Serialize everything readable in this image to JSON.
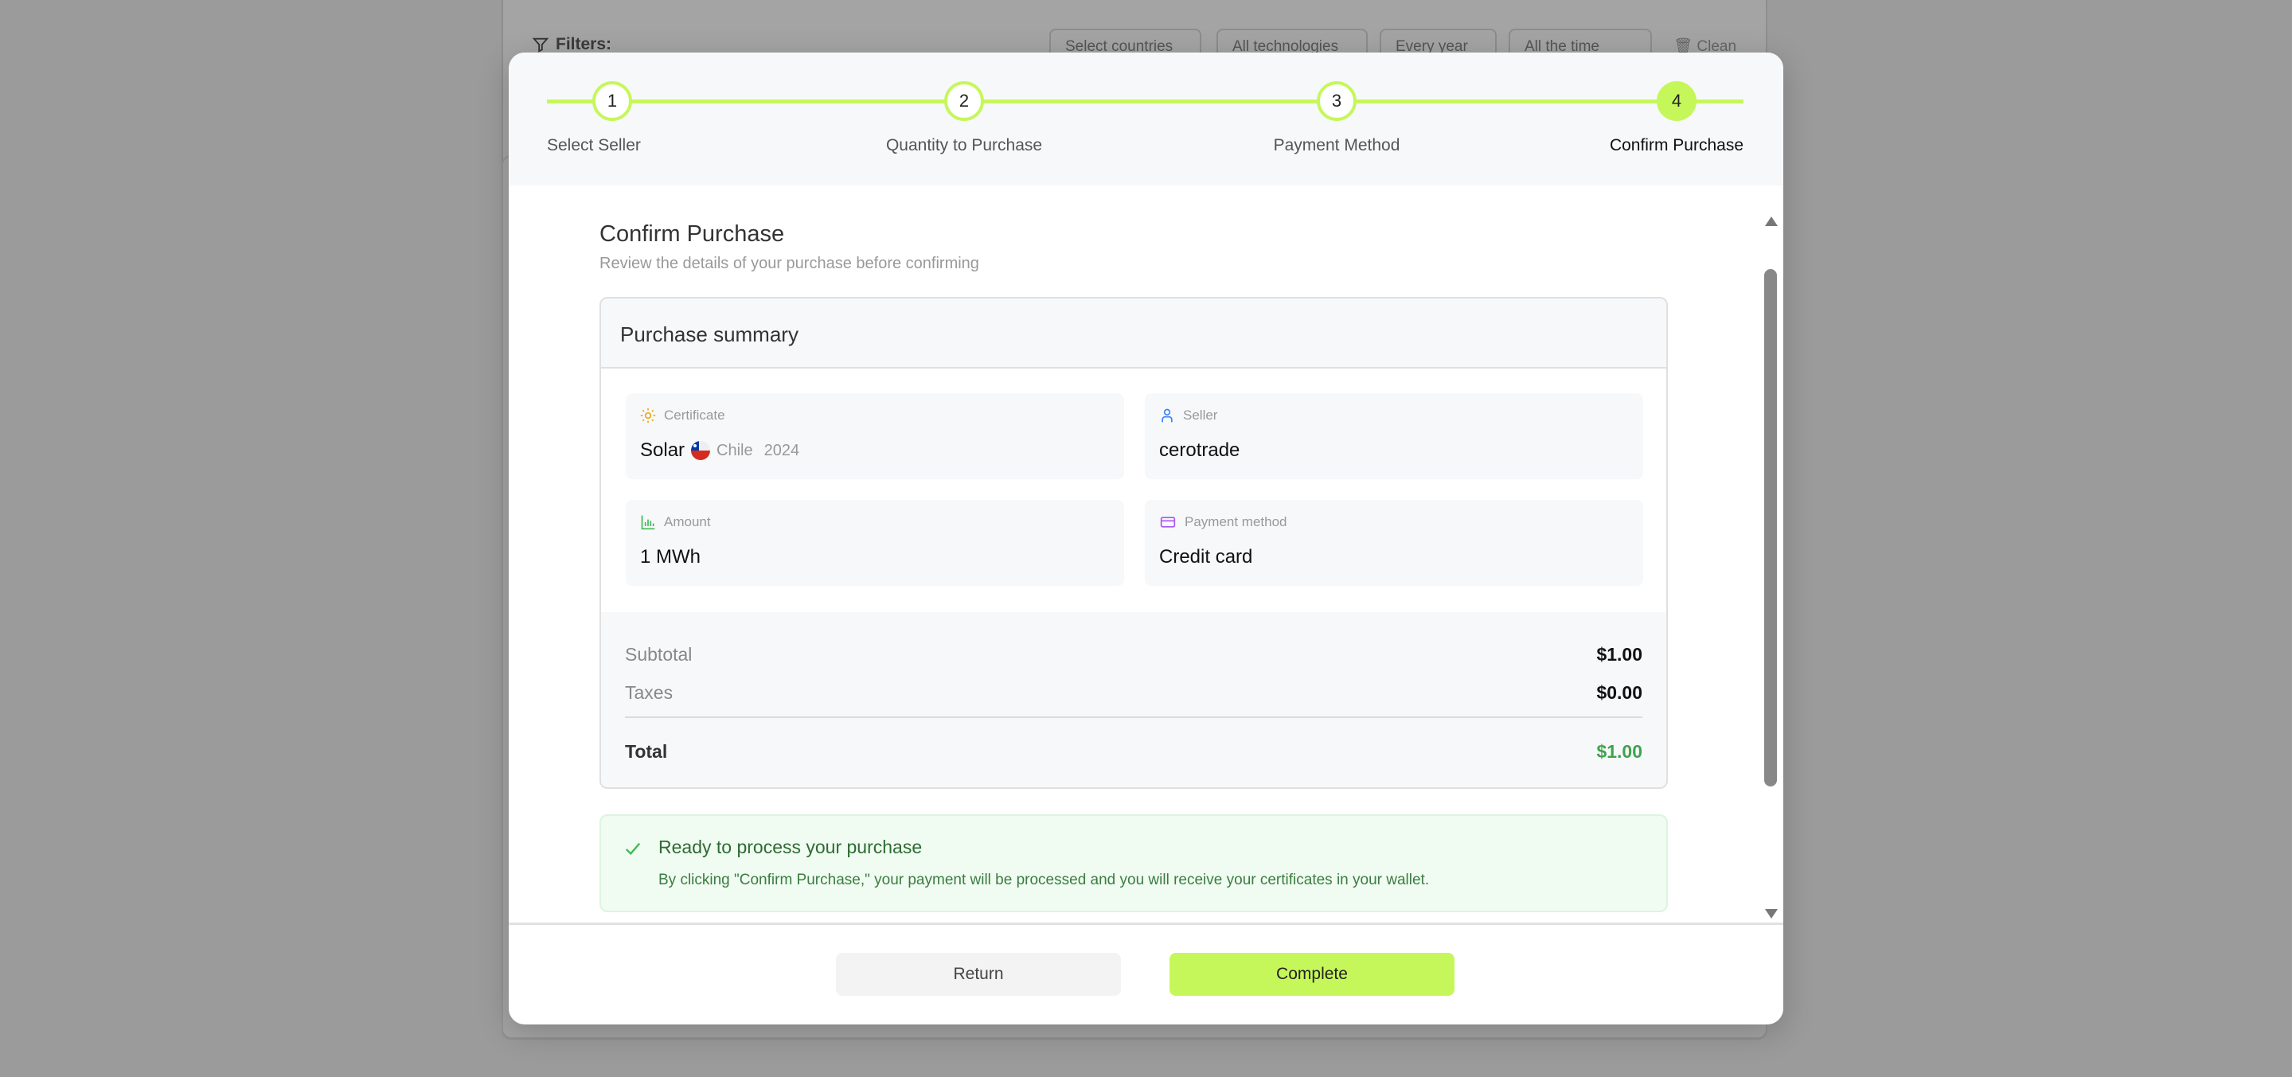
{
  "background": {
    "filters_label": "Filters:",
    "dropdowns": [
      "Select countries",
      "All technologies",
      "Every year",
      "All the time"
    ],
    "clean_label": "Clean"
  },
  "stepper": {
    "accent": "#c6f75a",
    "steps": [
      {
        "number": "1",
        "label": "Select Seller"
      },
      {
        "number": "2",
        "label": "Quantity to Purchase"
      },
      {
        "number": "3",
        "label": "Payment Method"
      },
      {
        "number": "4",
        "label": "Confirm Purchase"
      }
    ],
    "current_step": 4
  },
  "content": {
    "title": "Confirm Purchase",
    "subtitle": "Review the details of your purchase before confirming",
    "summary": {
      "title": "Purchase summary",
      "certificate": {
        "label": "Certificate",
        "technology": "Solar",
        "country": "Chile",
        "year": "2024",
        "icon": "sun-icon"
      },
      "seller": {
        "label": "Seller",
        "value": "cerotrade",
        "icon": "user-icon"
      },
      "amount": {
        "label": "Amount",
        "value": "1 MWh",
        "icon": "bar-chart-icon"
      },
      "payment": {
        "label": "Payment method",
        "value": "Credit card",
        "icon": "credit-card-icon"
      },
      "subtotal_label": "Subtotal",
      "subtotal": "$1.00",
      "taxes_label": "Taxes",
      "taxes": "$0.00",
      "total_label": "Total",
      "total": "$1.00"
    },
    "notice": {
      "title": "Ready to process your purchase",
      "text": "By clicking \"Confirm Purchase,\" your payment will be processed and you will receive your certificates in your wallet."
    }
  },
  "footer": {
    "return_label": "Return",
    "complete_label": "Complete"
  }
}
